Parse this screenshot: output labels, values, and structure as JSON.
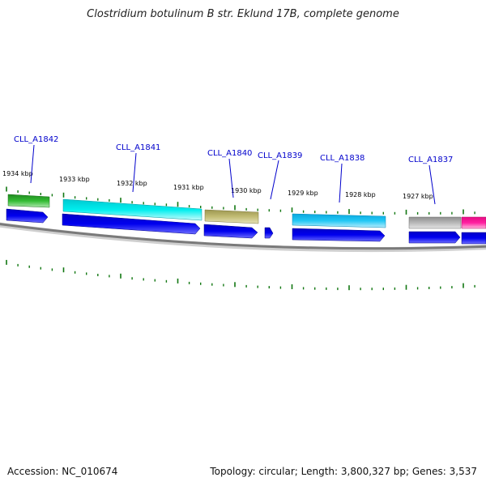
{
  "title": "Clostridium botulinum B str. Eklund 17B, complete genome",
  "footer": {
    "accession": "Accession: NC_010674",
    "summary": "Topology: circular; Length: 3,800,327 bp; Genes: 3,537"
  },
  "ruler": {
    "ticks": [
      {
        "label": "1934 kbp"
      },
      {
        "label": "1933 kbp"
      },
      {
        "label": "1932 kbp"
      },
      {
        "label": "1931 kbp"
      },
      {
        "label": "1930 kbp"
      },
      {
        "label": "1929 kbp"
      },
      {
        "label": "1928 kbp"
      },
      {
        "label": "1927 kbp"
      }
    ]
  },
  "genes": [
    {
      "name": "CLL_A1842",
      "color": "#33aa33"
    },
    {
      "name": "CLL_A1841",
      "color": "#00e5ee"
    },
    {
      "name": "CLL_A1840",
      "color": "#bdb76b"
    },
    {
      "name": "CLL_A1839",
      "color": "#0000ee"
    },
    {
      "name": "CLL_A1838",
      "color": "#00bfff"
    },
    {
      "name": "CLL_A1837",
      "color": "#b0b0b0"
    },
    {
      "name": "",
      "color": "#ff1493"
    }
  ],
  "colors": {
    "cds": "#0000ee",
    "tick": "#117711",
    "backbone": "#888888",
    "label": "#0000cc"
  }
}
